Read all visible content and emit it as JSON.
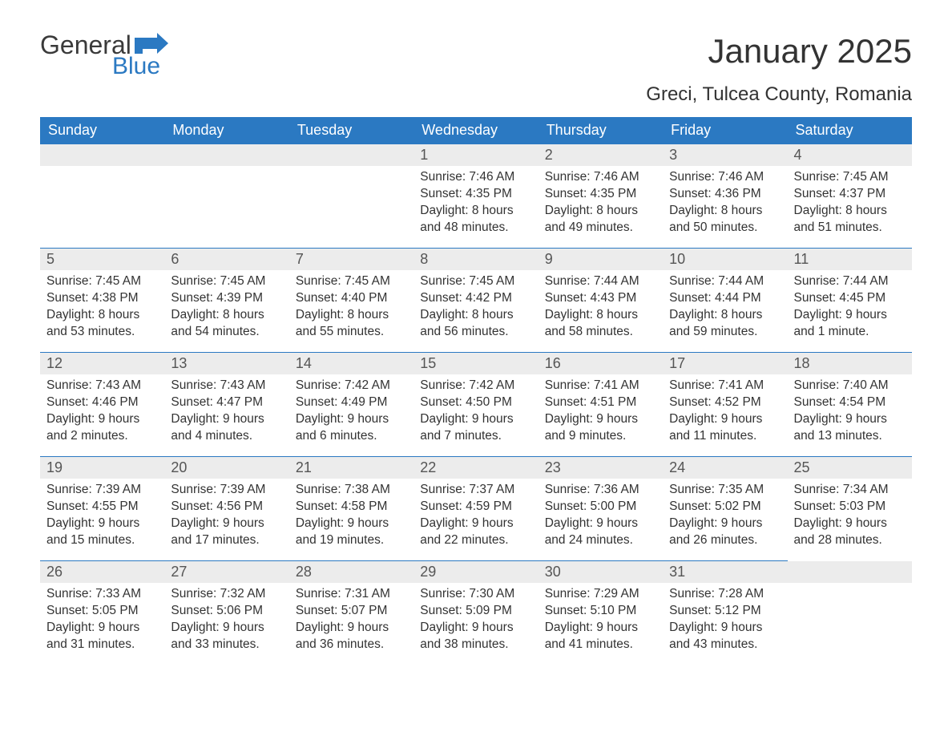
{
  "logo": {
    "general": "General",
    "blue": "Blue",
    "flag_color": "#2b79c2"
  },
  "title": "January 2025",
  "location": "Greci, Tulcea County, Romania",
  "colors": {
    "header_bg": "#2b79c2",
    "header_text": "#ffffff",
    "daynum_bg": "#ececec",
    "daynum_text": "#555555",
    "body_text": "#333333",
    "row_border": "#2b79c2",
    "page_bg": "#ffffff"
  },
  "fonts": {
    "title_size_pt": 32,
    "location_size_pt": 18,
    "header_size_pt": 14,
    "daynum_size_pt": 14,
    "body_size_pt": 12
  },
  "weekdays": [
    "Sunday",
    "Monday",
    "Tuesday",
    "Wednesday",
    "Thursday",
    "Friday",
    "Saturday"
  ],
  "weeks": [
    [
      {
        "n": "",
        "sr": "",
        "ss": "",
        "dl": ""
      },
      {
        "n": "",
        "sr": "",
        "ss": "",
        "dl": ""
      },
      {
        "n": "",
        "sr": "",
        "ss": "",
        "dl": ""
      },
      {
        "n": "1",
        "sr": "Sunrise: 7:46 AM",
        "ss": "Sunset: 4:35 PM",
        "dl": "Daylight: 8 hours and 48 minutes."
      },
      {
        "n": "2",
        "sr": "Sunrise: 7:46 AM",
        "ss": "Sunset: 4:35 PM",
        "dl": "Daylight: 8 hours and 49 minutes."
      },
      {
        "n": "3",
        "sr": "Sunrise: 7:46 AM",
        "ss": "Sunset: 4:36 PM",
        "dl": "Daylight: 8 hours and 50 minutes."
      },
      {
        "n": "4",
        "sr": "Sunrise: 7:45 AM",
        "ss": "Sunset: 4:37 PM",
        "dl": "Daylight: 8 hours and 51 minutes."
      }
    ],
    [
      {
        "n": "5",
        "sr": "Sunrise: 7:45 AM",
        "ss": "Sunset: 4:38 PM",
        "dl": "Daylight: 8 hours and 53 minutes."
      },
      {
        "n": "6",
        "sr": "Sunrise: 7:45 AM",
        "ss": "Sunset: 4:39 PM",
        "dl": "Daylight: 8 hours and 54 minutes."
      },
      {
        "n": "7",
        "sr": "Sunrise: 7:45 AM",
        "ss": "Sunset: 4:40 PM",
        "dl": "Daylight: 8 hours and 55 minutes."
      },
      {
        "n": "8",
        "sr": "Sunrise: 7:45 AM",
        "ss": "Sunset: 4:42 PM",
        "dl": "Daylight: 8 hours and 56 minutes."
      },
      {
        "n": "9",
        "sr": "Sunrise: 7:44 AM",
        "ss": "Sunset: 4:43 PM",
        "dl": "Daylight: 8 hours and 58 minutes."
      },
      {
        "n": "10",
        "sr": "Sunrise: 7:44 AM",
        "ss": "Sunset: 4:44 PM",
        "dl": "Daylight: 8 hours and 59 minutes."
      },
      {
        "n": "11",
        "sr": "Sunrise: 7:44 AM",
        "ss": "Sunset: 4:45 PM",
        "dl": "Daylight: 9 hours and 1 minute."
      }
    ],
    [
      {
        "n": "12",
        "sr": "Sunrise: 7:43 AM",
        "ss": "Sunset: 4:46 PM",
        "dl": "Daylight: 9 hours and 2 minutes."
      },
      {
        "n": "13",
        "sr": "Sunrise: 7:43 AM",
        "ss": "Sunset: 4:47 PM",
        "dl": "Daylight: 9 hours and 4 minutes."
      },
      {
        "n": "14",
        "sr": "Sunrise: 7:42 AM",
        "ss": "Sunset: 4:49 PM",
        "dl": "Daylight: 9 hours and 6 minutes."
      },
      {
        "n": "15",
        "sr": "Sunrise: 7:42 AM",
        "ss": "Sunset: 4:50 PM",
        "dl": "Daylight: 9 hours and 7 minutes."
      },
      {
        "n": "16",
        "sr": "Sunrise: 7:41 AM",
        "ss": "Sunset: 4:51 PM",
        "dl": "Daylight: 9 hours and 9 minutes."
      },
      {
        "n": "17",
        "sr": "Sunrise: 7:41 AM",
        "ss": "Sunset: 4:52 PM",
        "dl": "Daylight: 9 hours and 11 minutes."
      },
      {
        "n": "18",
        "sr": "Sunrise: 7:40 AM",
        "ss": "Sunset: 4:54 PM",
        "dl": "Daylight: 9 hours and 13 minutes."
      }
    ],
    [
      {
        "n": "19",
        "sr": "Sunrise: 7:39 AM",
        "ss": "Sunset: 4:55 PM",
        "dl": "Daylight: 9 hours and 15 minutes."
      },
      {
        "n": "20",
        "sr": "Sunrise: 7:39 AM",
        "ss": "Sunset: 4:56 PM",
        "dl": "Daylight: 9 hours and 17 minutes."
      },
      {
        "n": "21",
        "sr": "Sunrise: 7:38 AM",
        "ss": "Sunset: 4:58 PM",
        "dl": "Daylight: 9 hours and 19 minutes."
      },
      {
        "n": "22",
        "sr": "Sunrise: 7:37 AM",
        "ss": "Sunset: 4:59 PM",
        "dl": "Daylight: 9 hours and 22 minutes."
      },
      {
        "n": "23",
        "sr": "Sunrise: 7:36 AM",
        "ss": "Sunset: 5:00 PM",
        "dl": "Daylight: 9 hours and 24 minutes."
      },
      {
        "n": "24",
        "sr": "Sunrise: 7:35 AM",
        "ss": "Sunset: 5:02 PM",
        "dl": "Daylight: 9 hours and 26 minutes."
      },
      {
        "n": "25",
        "sr": "Sunrise: 7:34 AM",
        "ss": "Sunset: 5:03 PM",
        "dl": "Daylight: 9 hours and 28 minutes."
      }
    ],
    [
      {
        "n": "26",
        "sr": "Sunrise: 7:33 AM",
        "ss": "Sunset: 5:05 PM",
        "dl": "Daylight: 9 hours and 31 minutes."
      },
      {
        "n": "27",
        "sr": "Sunrise: 7:32 AM",
        "ss": "Sunset: 5:06 PM",
        "dl": "Daylight: 9 hours and 33 minutes."
      },
      {
        "n": "28",
        "sr": "Sunrise: 7:31 AM",
        "ss": "Sunset: 5:07 PM",
        "dl": "Daylight: 9 hours and 36 minutes."
      },
      {
        "n": "29",
        "sr": "Sunrise: 7:30 AM",
        "ss": "Sunset: 5:09 PM",
        "dl": "Daylight: 9 hours and 38 minutes."
      },
      {
        "n": "30",
        "sr": "Sunrise: 7:29 AM",
        "ss": "Sunset: 5:10 PM",
        "dl": "Daylight: 9 hours and 41 minutes."
      },
      {
        "n": "31",
        "sr": "Sunrise: 7:28 AM",
        "ss": "Sunset: 5:12 PM",
        "dl": "Daylight: 9 hours and 43 minutes."
      },
      {
        "n": "",
        "sr": "",
        "ss": "",
        "dl": ""
      }
    ]
  ]
}
